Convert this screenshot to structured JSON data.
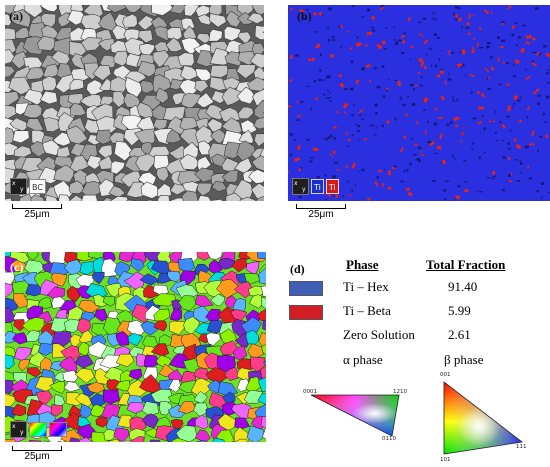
{
  "panel_a": {
    "label": "(a)",
    "chip": "BC",
    "scale": "25μm"
  },
  "panel_b": {
    "label": "(b)",
    "chip1": "Ti",
    "chip2": "Ti",
    "scale": "25μm"
  },
  "panel_c": {
    "label": "(c)",
    "scale": "25μm"
  },
  "panel_d": {
    "label": "(d)",
    "col_phase": "Phase",
    "col_fraction": "Total Fraction",
    "rows": [
      {
        "name": "Ti – Hex",
        "value": "91.40",
        "color": "#3f5fb6"
      },
      {
        "name": "Ti – Beta",
        "value": "5.99",
        "color": "#d21d24"
      },
      {
        "name": "Zero Solution",
        "value": "2.61"
      }
    ],
    "alpha_label": "α phase",
    "beta_label": "β phase",
    "alpha_tri": {
      "top_left": "0001",
      "top_right": "1210",
      "bottom": "0110"
    },
    "beta_tri": {
      "top": "001",
      "bottom_left": "101",
      "bottom_right": "111"
    }
  },
  "colors": {
    "hex_blue": "#2a2fe0",
    "beta_red": "#e0261a"
  }
}
